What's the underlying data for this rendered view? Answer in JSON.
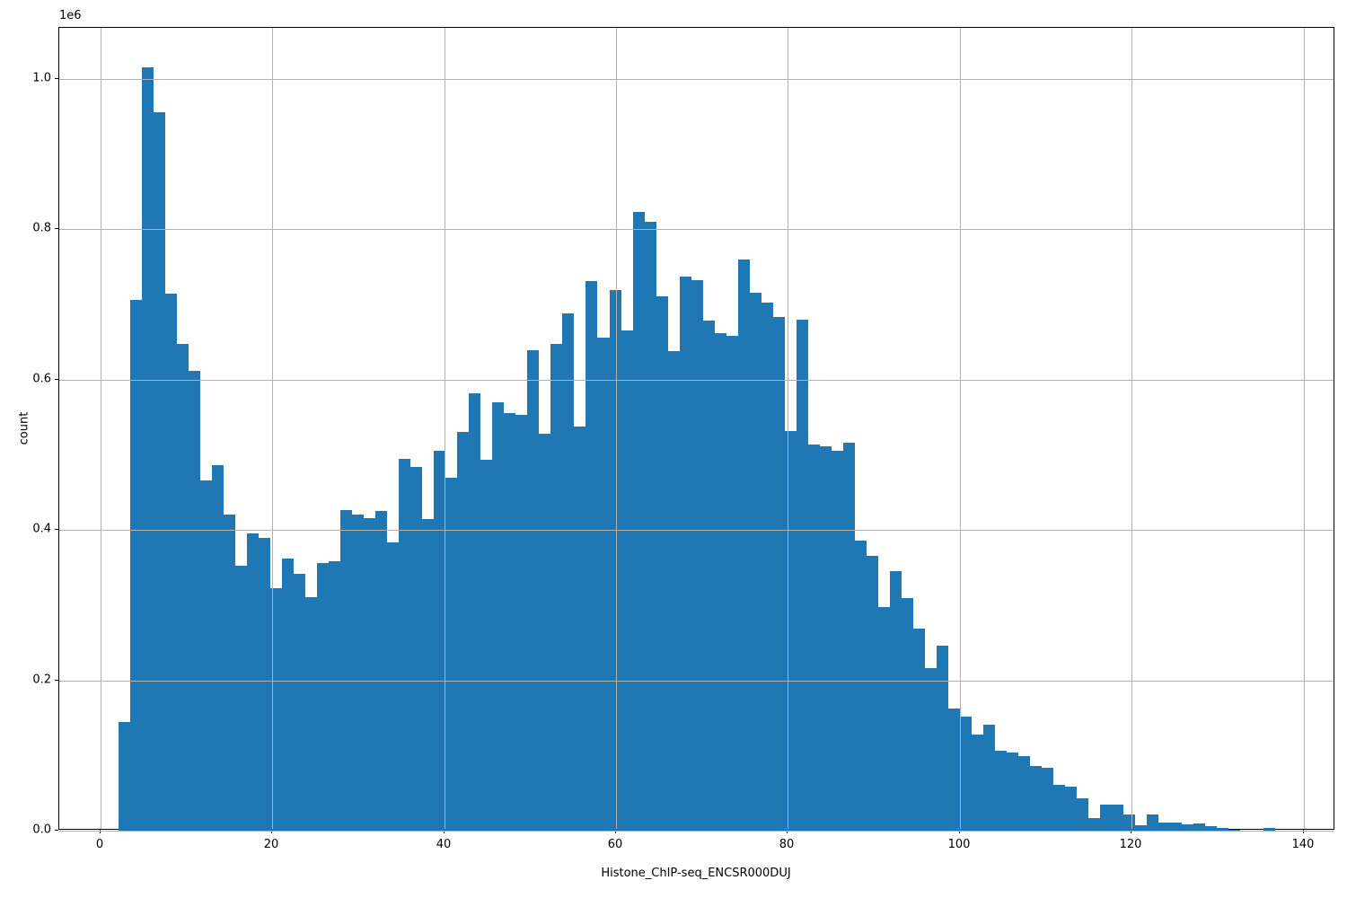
{
  "figure": {
    "background": "#ffffff"
  },
  "chart_data": {
    "type": "bar",
    "subtype": "histogram",
    "title": "",
    "xlabel": "Histone_ChIP-seq_ENCSR000DUJ",
    "ylabel": "count",
    "y_offset_label": "1e6",
    "bar_color": "#1f77b4",
    "grid_color": "#b0b0b0",
    "spine_color": "#000000",
    "grid_on": true,
    "legend": "none",
    "xlim": [
      -4.78,
      143.7
    ],
    "ylim": [
      0,
      1068000
    ],
    "x_ticks": [
      0,
      20,
      40,
      60,
      80,
      100,
      120,
      140
    ],
    "x_tick_labels": [
      "0",
      "20",
      "40",
      "60",
      "80",
      "100",
      "120",
      "140"
    ],
    "y_ticks": [
      0,
      200000,
      400000,
      600000,
      800000,
      1000000
    ],
    "y_tick_labels": [
      "0.0",
      "0.2",
      "0.4",
      "0.6",
      "0.8",
      "1.0"
    ],
    "bin_start": 2.1,
    "bin_width": 1.36,
    "counts": [
      144000,
      706000,
      1016000,
      956000,
      714000,
      647000,
      612000,
      466000,
      486000,
      420000,
      352000,
      396000,
      389000,
      322000,
      362000,
      342000,
      311000,
      356000,
      358000,
      427000,
      420000,
      416000,
      425000,
      384000,
      494000,
      484000,
      415000,
      505000,
      469000,
      530000,
      582000,
      493000,
      570000,
      556000,
      553000,
      639000,
      528000,
      648000,
      688000,
      538000,
      731000,
      656000,
      719000,
      666000,
      823000,
      810000,
      711000,
      638000,
      737000,
      732000,
      678000,
      662000,
      658000,
      760000,
      716000,
      702000,
      683000,
      532000,
      680000,
      514000,
      511000,
      505000,
      516000,
      386000,
      365000,
      298000,
      345000,
      309000,
      269000,
      216000,
      246000,
      163000,
      152000,
      128000,
      141000,
      106000,
      104000,
      99000,
      86000,
      84000,
      61000,
      59000,
      43000,
      17000,
      35000,
      35000,
      21000,
      7000,
      22000,
      11000,
      11000,
      8000,
      10000,
      6000,
      3000,
      1000,
      0,
      0,
      4000
    ]
  }
}
